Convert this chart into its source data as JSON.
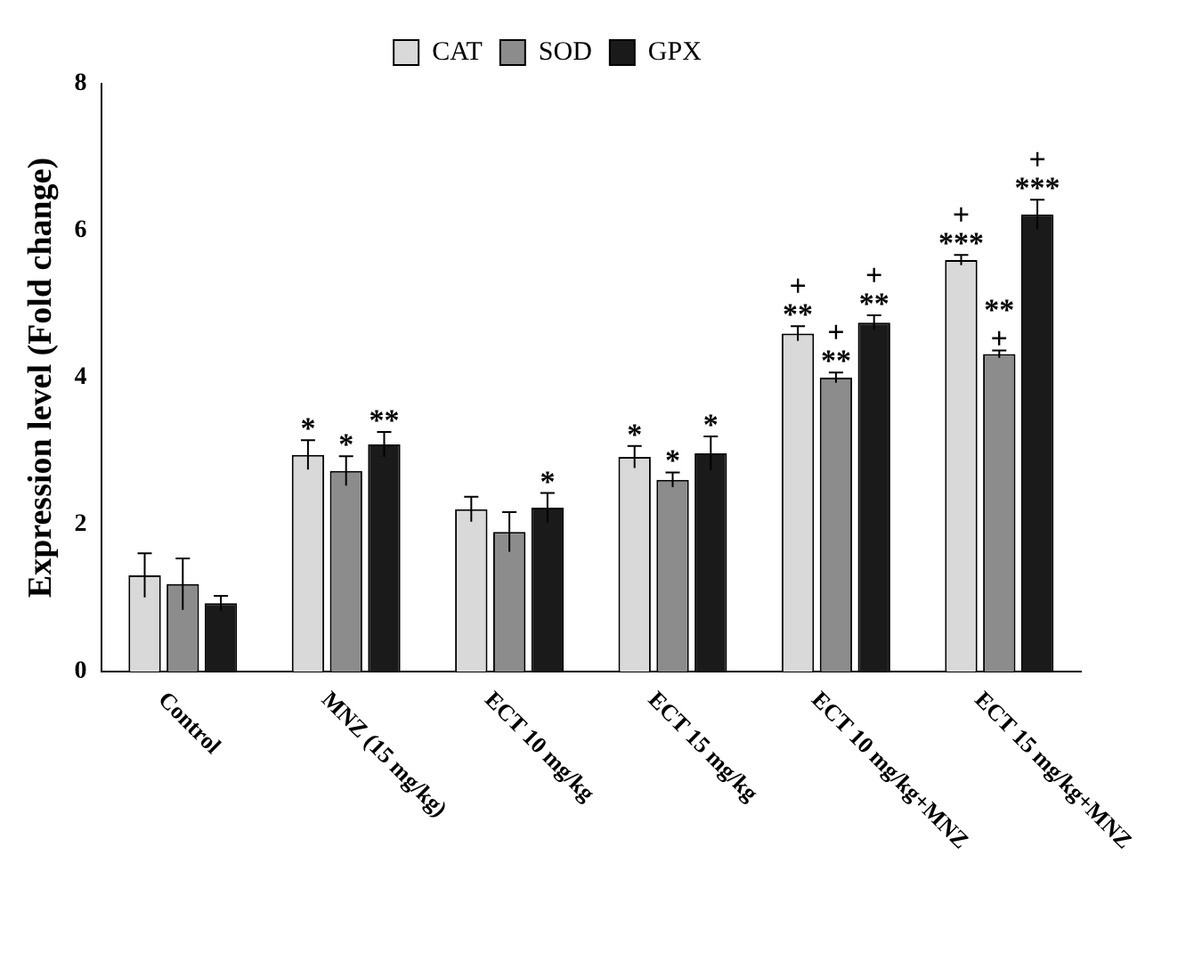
{
  "chart_data": {
    "type": "bar",
    "ylabel": "Expression level (Fold change)",
    "categories": [
      "Control",
      "MNZ (15 mg/kg)",
      "ECT 10 mg/kg",
      "ECT 15 mg/kg",
      "ECT 10 mg/kg+MNZ",
      "ECT 15 mg/kg+MNZ"
    ],
    "series": [
      {
        "name": "CAT",
        "color": "#d9d9d9",
        "values": [
          1.31,
          2.95,
          2.21,
          2.92,
          4.6,
          5.6
        ],
        "errors": [
          0.3,
          0.2,
          0.17,
          0.15,
          0.1,
          0.07
        ],
        "value_labels": [
          null,
          "*",
          null,
          "*",
          "+\n**",
          "+\n***"
        ]
      },
      {
        "name": "SOD",
        "color": "#8c8c8c",
        "values": [
          1.19,
          2.73,
          1.9,
          2.61,
          4.0,
          4.32
        ],
        "errors": [
          0.35,
          0.2,
          0.27,
          0.1,
          0.07,
          0.05
        ],
        "value_labels": [
          null,
          "*",
          null,
          "*",
          "+\n**",
          "**\n+"
        ]
      },
      {
        "name": "GPX",
        "color": "#1a1a1a",
        "values": [
          0.93,
          3.09,
          2.23,
          2.97,
          4.75,
          6.22
        ],
        "errors": [
          0.1,
          0.17,
          0.2,
          0.23,
          0.1,
          0.2
        ],
        "value_labels": [
          null,
          "**",
          "*",
          "*",
          "+\n**",
          "+\n***"
        ]
      }
    ],
    "ylim": [
      0,
      8
    ],
    "yticks": [
      0,
      2,
      4,
      6,
      8
    ],
    "grid": false,
    "legend": "top"
  }
}
